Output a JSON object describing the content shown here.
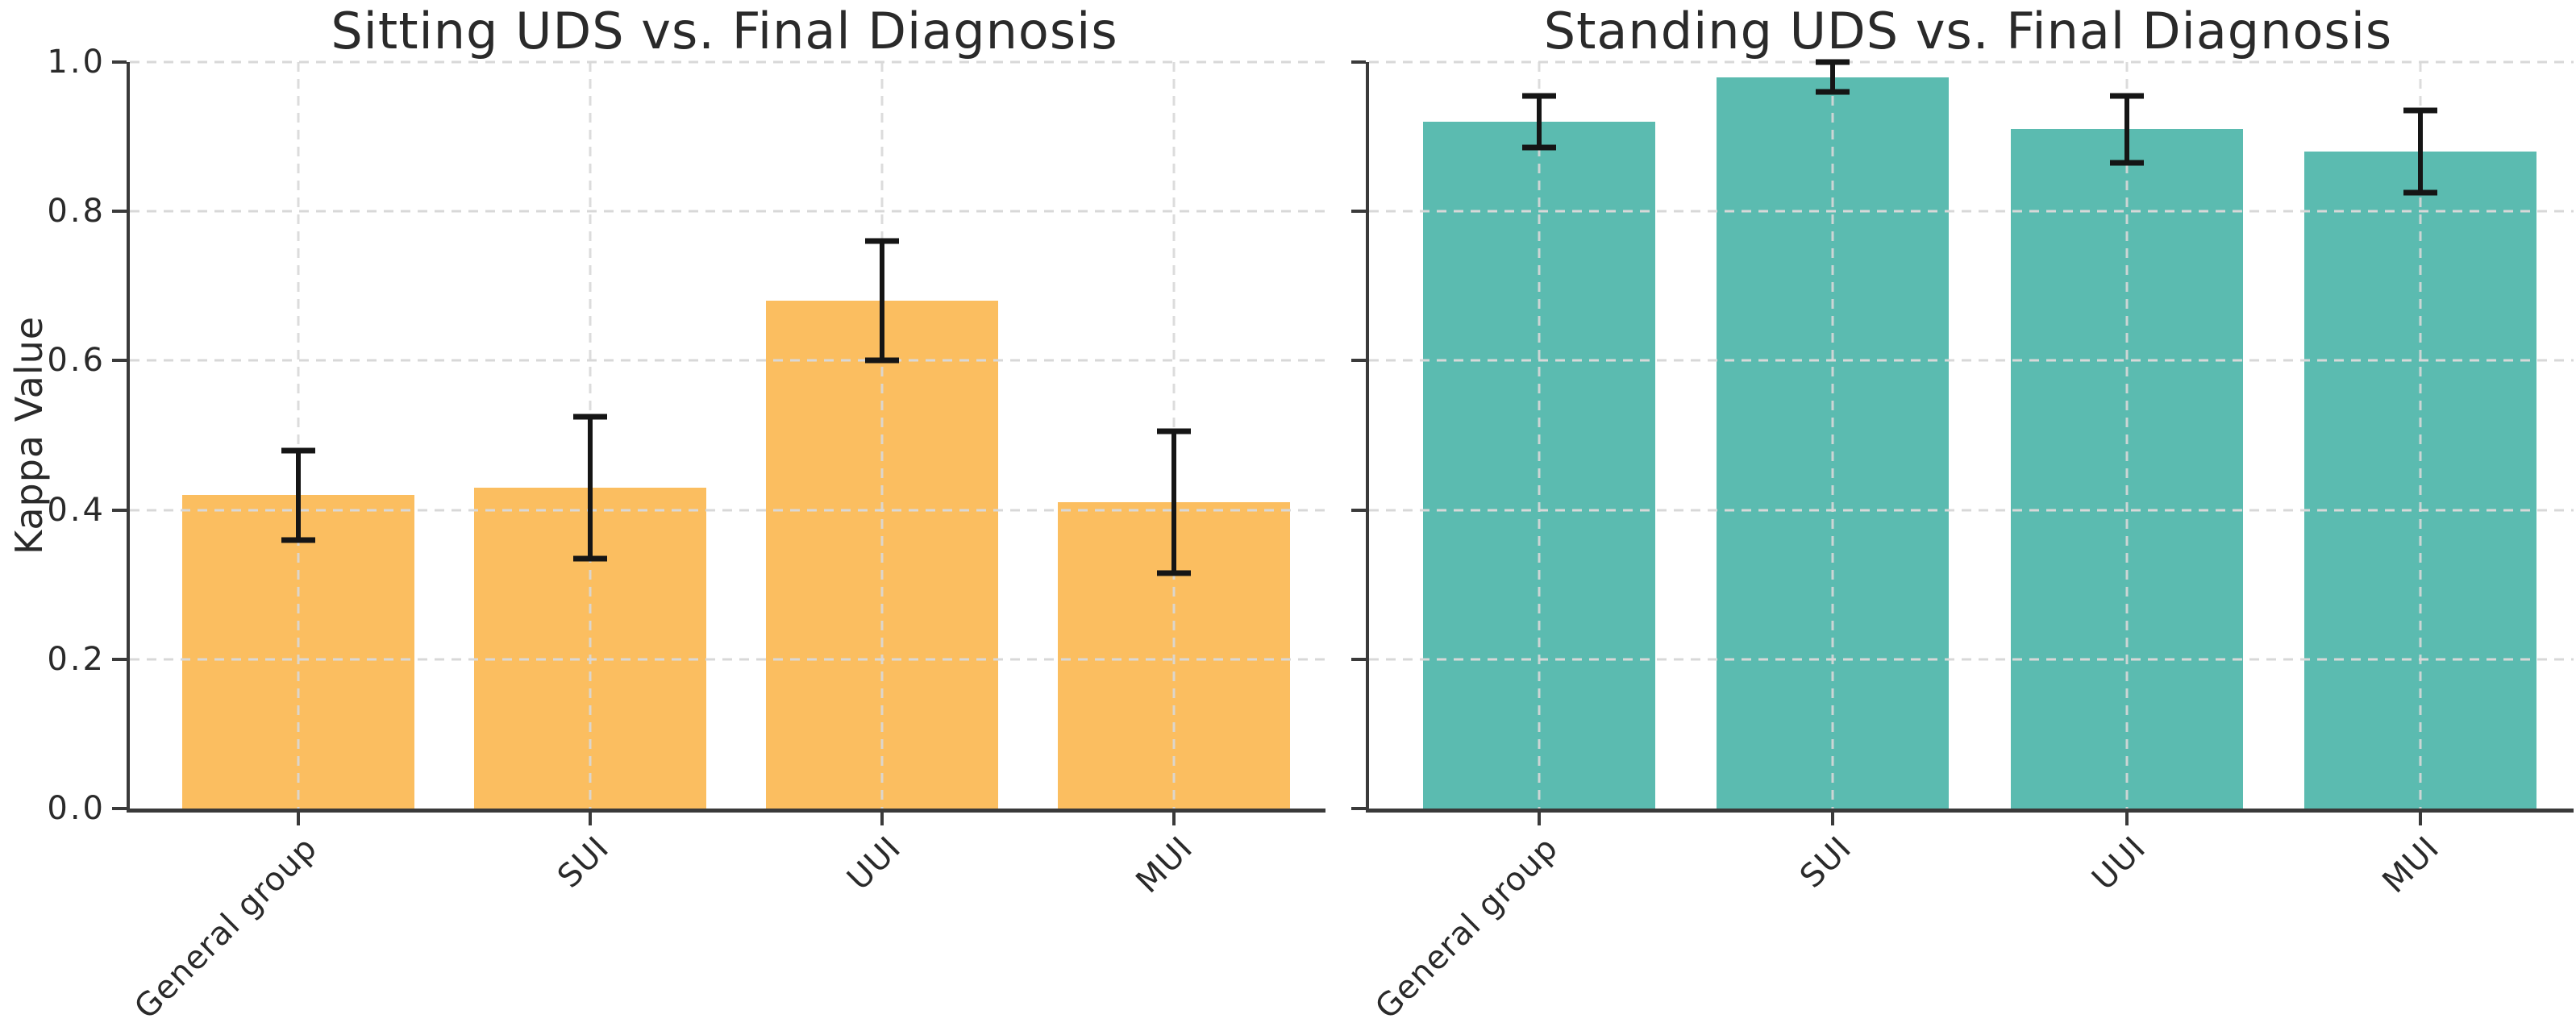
{
  "figure": {
    "background": "#ffffff",
    "grid_color": "#d8d8d8",
    "spine_color": "#3a3a3a",
    "error_bar_color": "#151515",
    "text_color": "#2a2a2a"
  },
  "chart_data": [
    {
      "type": "bar",
      "title": "Sitting UDS vs. Final Diagnosis",
      "ylabel": "Kappa Value",
      "xlabel": "",
      "categories": [
        "General group",
        "SUI",
        "UUI",
        "MUI"
      ],
      "values": [
        0.42,
        0.43,
        0.68,
        0.41
      ],
      "errors": [
        0.06,
        0.095,
        0.08,
        0.095
      ],
      "bar_color": "#FBBE60",
      "ylim": [
        0.0,
        1.0
      ],
      "yticks": [
        0.0,
        0.2,
        0.4,
        0.6,
        0.8,
        1.0
      ],
      "ytick_labels": [
        "0.0",
        "0.2",
        "0.4",
        "0.6",
        "0.8",
        "1.0"
      ],
      "show_ytick_labels": true,
      "grid": "dashed",
      "legend": "none"
    },
    {
      "type": "bar",
      "title": "Standing UDS vs. Final Diagnosis",
      "ylabel": "",
      "xlabel": "",
      "categories": [
        "General group",
        "SUI",
        "UUI",
        "MUI"
      ],
      "values": [
        0.92,
        0.98,
        0.91,
        0.88
      ],
      "errors": [
        0.035,
        0.02,
        0.045,
        0.055
      ],
      "bar_color": "#5BBBB0",
      "ylim": [
        0.0,
        1.0
      ],
      "yticks": [
        0.0,
        0.2,
        0.4,
        0.6,
        0.8,
        1.0
      ],
      "ytick_labels": [
        "0.0",
        "0.2",
        "0.4",
        "0.6",
        "0.8",
        "1.0"
      ],
      "show_ytick_labels": false,
      "grid": "dashed",
      "legend": "none"
    }
  ]
}
